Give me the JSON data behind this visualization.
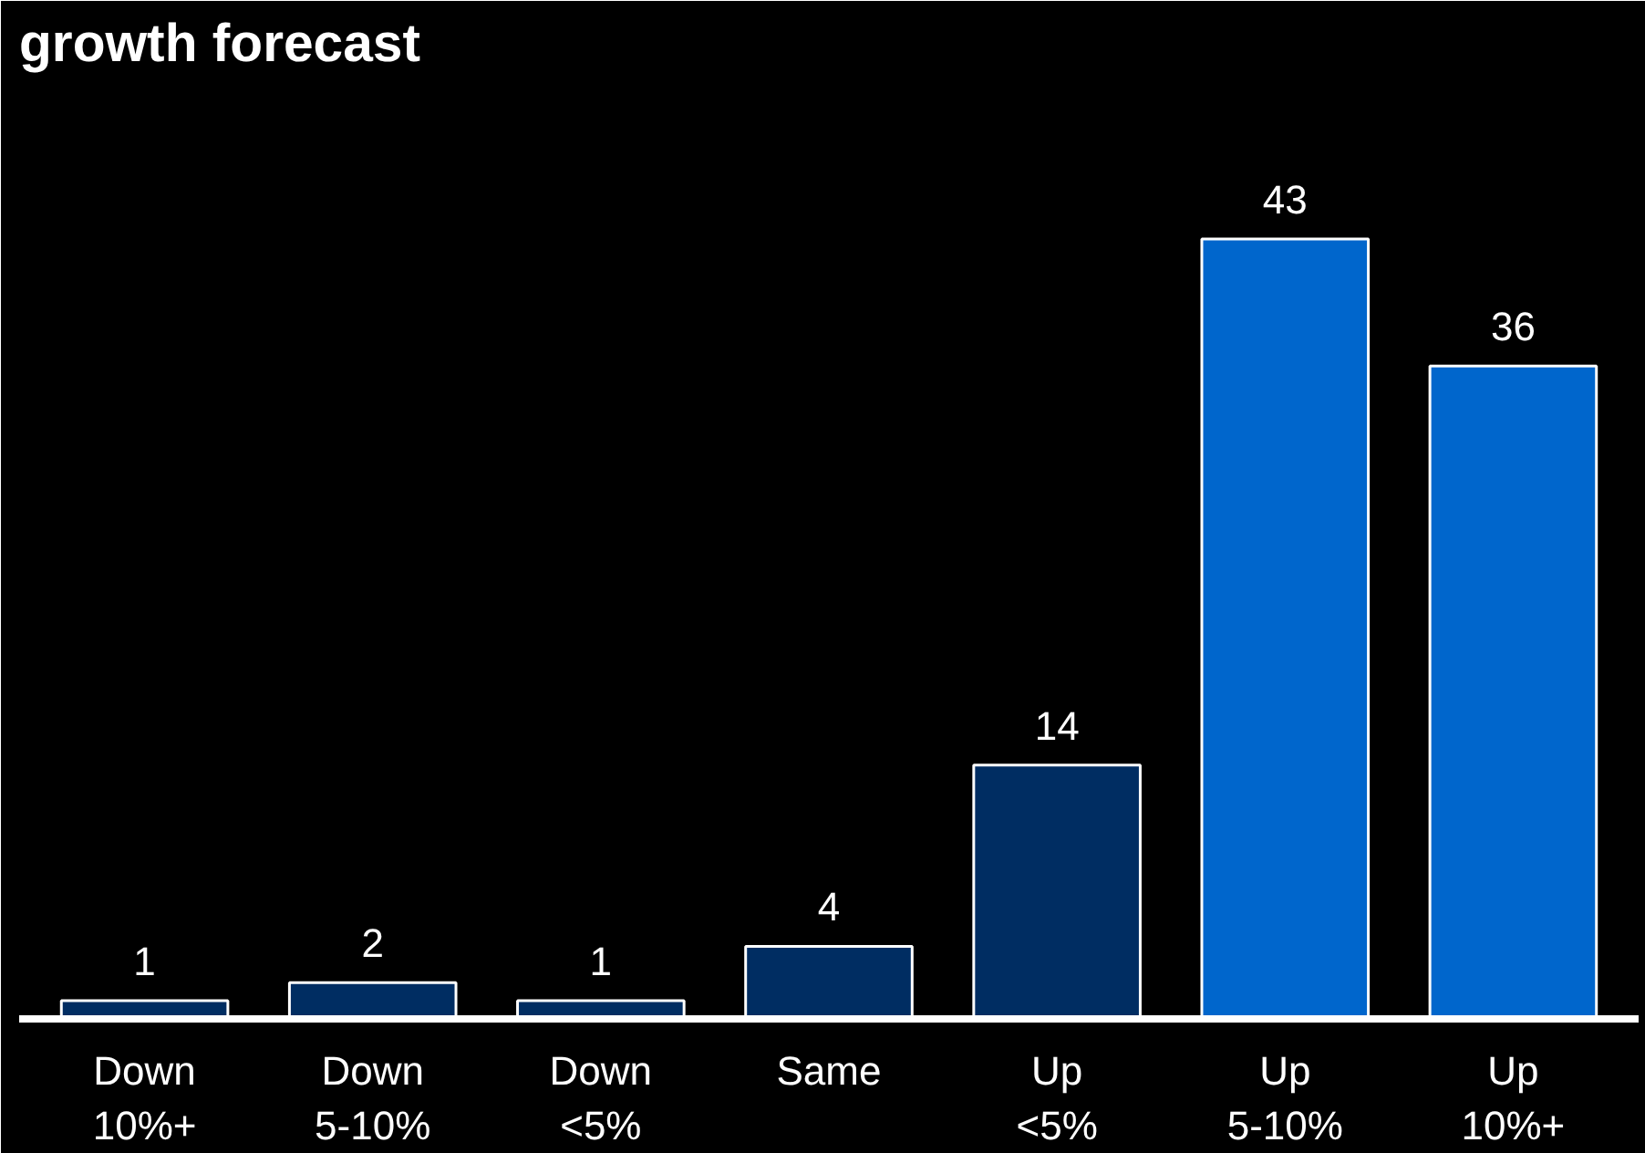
{
  "chart_data": {
    "type": "bar",
    "title": "growth forecast",
    "categories": [
      "Down\n10%+",
      "Down\n5-10%",
      "Down\n<5%",
      "Same",
      "Up\n<5%",
      "Up\n5-10%",
      "Up\n10%+"
    ],
    "values": [
      1,
      2,
      1,
      4,
      14,
      43,
      36
    ],
    "colors": [
      "#002d62",
      "#002d62",
      "#002d62",
      "#002d62",
      "#002d62",
      "#0066cc",
      "#0066cc"
    ],
    "data_labels": true
  }
}
